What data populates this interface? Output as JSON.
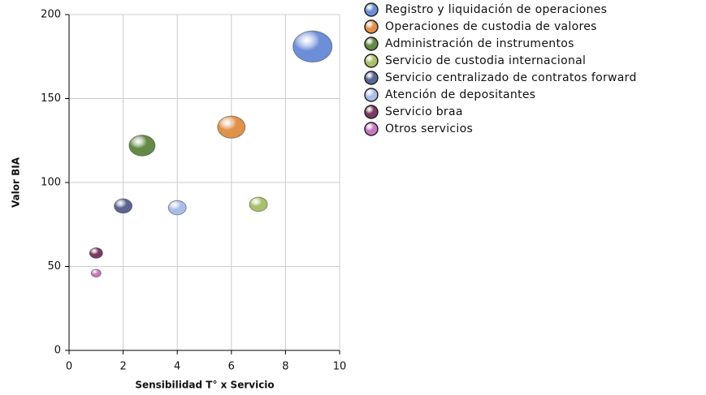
{
  "chart_data": {
    "type": "bubble",
    "xlabel": "Sensibilidad T°  x Servicio",
    "ylabel": "Valor BIA",
    "xlim": [
      0,
      10
    ],
    "xticks": [
      0,
      2,
      4,
      6,
      8,
      10
    ],
    "ylim": [
      0,
      200
    ],
    "yticks": [
      0,
      50,
      100,
      150,
      200
    ],
    "grid": true,
    "legend": "right",
    "series": [
      {
        "name": "Registro y liquidación de operaciones",
        "color": "#6d8ed8",
        "x": 9,
        "y": 181,
        "size": 24
      },
      {
        "name": "Operaciones de custodia de valores",
        "color": "#e0914a",
        "x": 6,
        "y": 133,
        "size": 17
      },
      {
        "name": "Administración de instrumentos",
        "color": "#648a45",
        "x": 2.7,
        "y": 122,
        "size": 16
      },
      {
        "name": "Servicio de custodia internacional",
        "color": "#a9c06a",
        "x": 7,
        "y": 87,
        "size": 11
      },
      {
        "name": "Servicio centralizado de contratos forward",
        "color": "#5a6592",
        "x": 2,
        "y": 86,
        "size": 11
      },
      {
        "name": "Atención de depositantes",
        "color": "#aabde9",
        "x": 4,
        "y": 85,
        "size": 11
      },
      {
        "name": "Servicio braa",
        "color": "#7a3a62",
        "x": 1,
        "y": 58,
        "size": 8
      },
      {
        "name": "Otros servicios",
        "color": "#c779c0",
        "x": 1,
        "y": 46,
        "size": 6
      }
    ]
  }
}
